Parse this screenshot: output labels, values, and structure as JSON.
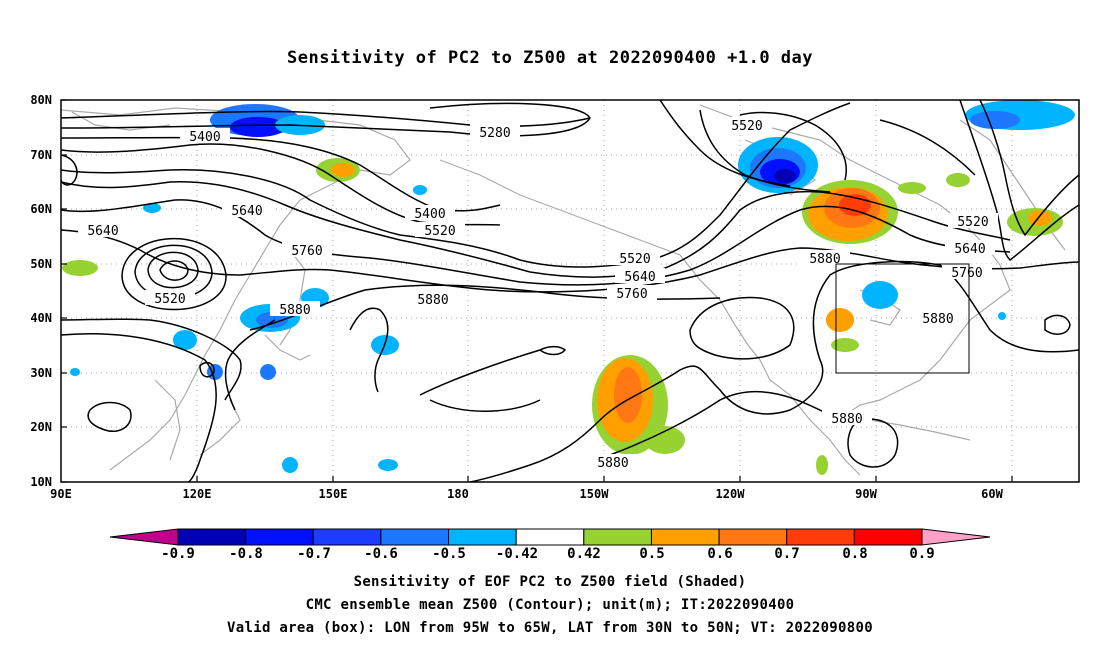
{
  "title": "Sensitivity of PC2 to Z500 at 2022090400 +1.0 day",
  "lat_labels": [
    "80N",
    "70N",
    "60N",
    "50N",
    "40N",
    "30N",
    "20N",
    "10N"
  ],
  "lon_labels": [
    "90E",
    "120E",
    "150E",
    "180",
    "150W",
    "120W",
    "90W",
    "60W"
  ],
  "contour_labels": [
    "5400",
    "5280",
    "5520",
    "5640",
    "5400",
    "5520",
    "5760",
    "5880",
    "5520",
    "5640",
    "5760",
    "5880",
    "5520",
    "5640",
    "5760",
    "5880",
    "5880",
    "5880",
    "5880"
  ],
  "colorbar": {
    "labels": [
      "-0.9",
      "-0.8",
      "-0.7",
      "-0.6",
      "-0.5",
      "-0.42",
      "0.42",
      "0.5",
      "0.6",
      "0.7",
      "0.8",
      "0.9"
    ],
    "colors": [
      "#c0008a",
      "#0000b4",
      "#0010ff",
      "#1e3cff",
      "#1e78ff",
      "#00b4ff",
      "#ffffff",
      "#96d232",
      "#ffa000",
      "#ff7814",
      "#ff3c0a",
      "#ff0000",
      "#ffa0c8"
    ]
  },
  "captions": [
    "Sensitivity of EOF PC2 to Z500 field (Shaded)",
    "CMC ensemble mean Z500 (Contour); unit(m); IT:2022090400",
    "Valid area (box): LON from 95W to 65W, LAT from 30N to 50N; VT: 2022090800"
  ]
}
